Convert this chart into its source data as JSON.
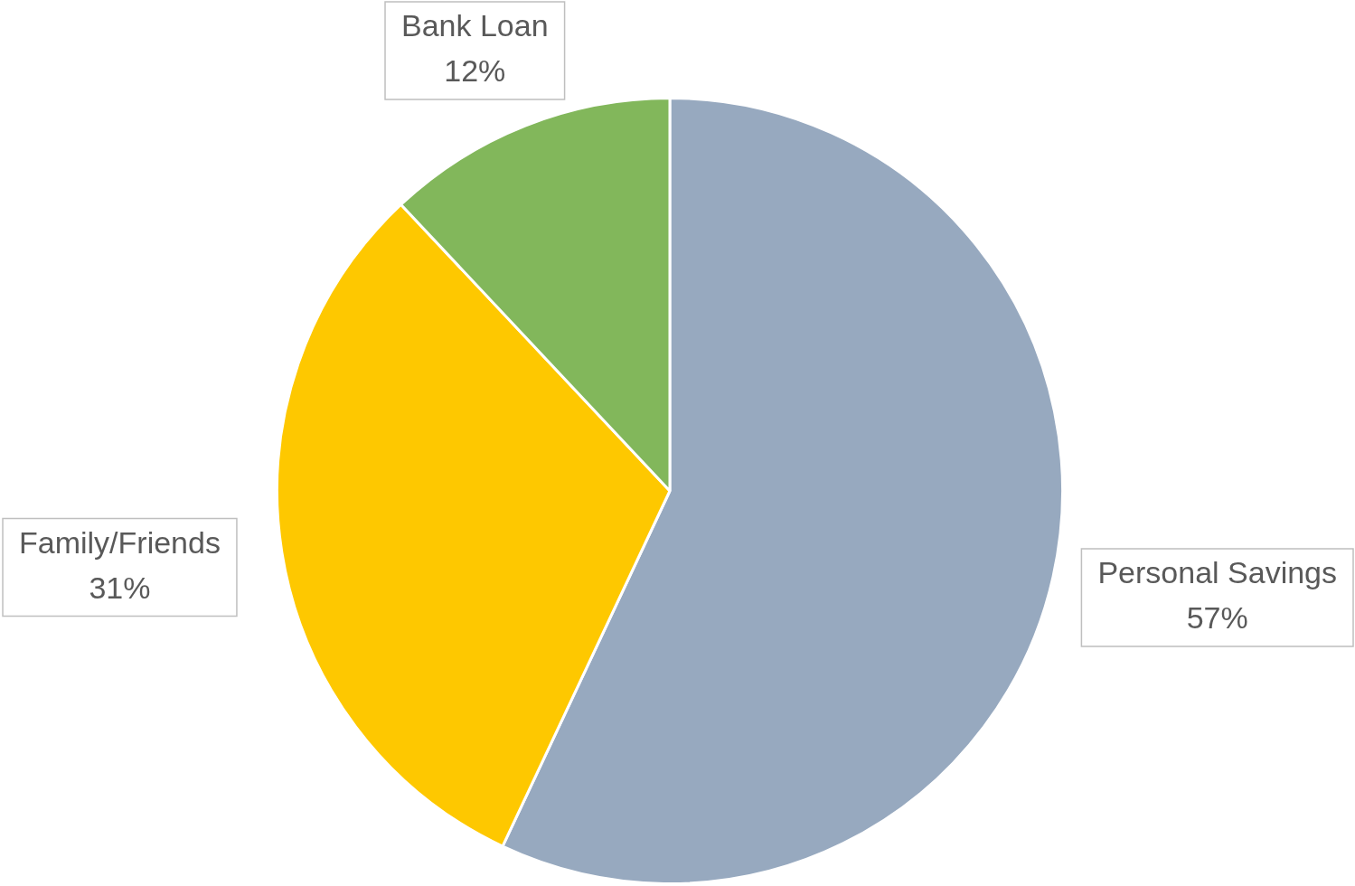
{
  "chart_data": {
    "type": "pie",
    "categories": [
      "Personal Savings",
      "Family/Friends",
      "Bank Loan"
    ],
    "values": [
      57,
      31,
      12
    ],
    "colors": [
      "#97a9bf",
      "#fec800",
      "#82b75b"
    ],
    "value_labels": [
      "57%",
      "31%",
      "12%"
    ],
    "legend": false
  }
}
